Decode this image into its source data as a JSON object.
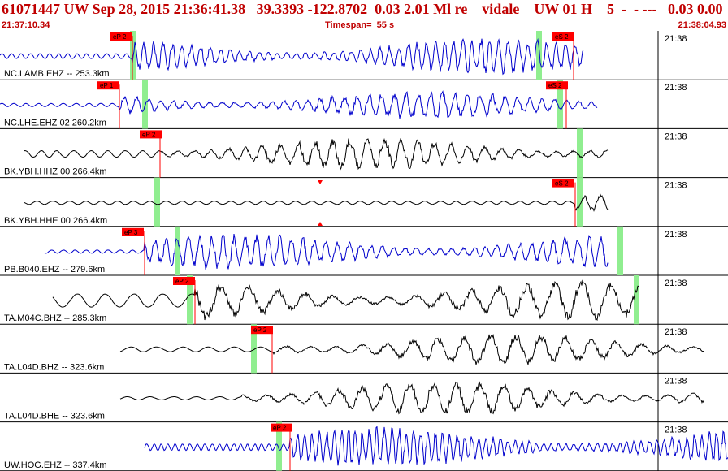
{
  "header": {
    "title": "61071447 UW Sep 28, 2015 21:36:41.38   39.3393 -122.8702  0.03 2.01 Ml re    vidale    UW 01 H    5  -  - ---   0.03 0.00",
    "start_time": "21:37:10.34",
    "timespan": "Timespan=  55 s",
    "end_time": "21:38:04.93"
  },
  "colors": {
    "header_text": "#c00000",
    "pick_flag": "#ff0000",
    "phase_window": "#90ee90",
    "trace_blue": "#0000cc",
    "trace_black": "#000000"
  },
  "traces": [
    {
      "label": "NC.LAMB.EHZ -- 253.3km",
      "time": "21:38",
      "color": "blue",
      "flags": [
        "eP 2",
        "eS 2"
      ]
    },
    {
      "label": "NC.LHE.EHZ 02 260.2km",
      "time": "21:38",
      "color": "blue",
      "flags": [
        "eP 1",
        "eS 2"
      ]
    },
    {
      "label": "BK.YBH.HHZ 00 266.4km",
      "time": "21:38",
      "color": "black",
      "flags": [
        "eP 2"
      ]
    },
    {
      "label": "BK.YBH.HHE 00 266.4km",
      "time": "21:38",
      "color": "black",
      "flags": [
        "eS 2"
      ]
    },
    {
      "label": "PB.B040.EHZ -- 279.6km",
      "time": "21:38",
      "color": "blue",
      "flags": [
        "eP 3"
      ]
    },
    {
      "label": "TA.M04C.BHZ -- 285.3km",
      "time": "21:38",
      "color": "black",
      "flags": [
        "eP 2"
      ]
    },
    {
      "label": "TA.L04D.BHZ -- 323.6km",
      "time": "21:38",
      "color": "black",
      "flags": [
        "eP 2"
      ]
    },
    {
      "label": "TA.L04D.BHE -- 323.6km",
      "time": "21:38",
      "color": "black",
      "flags": []
    },
    {
      "label": "UW.HOG.EHZ -- 337.4km",
      "time": "21:38",
      "color": "blue",
      "flags": [
        "eP 2"
      ]
    }
  ]
}
